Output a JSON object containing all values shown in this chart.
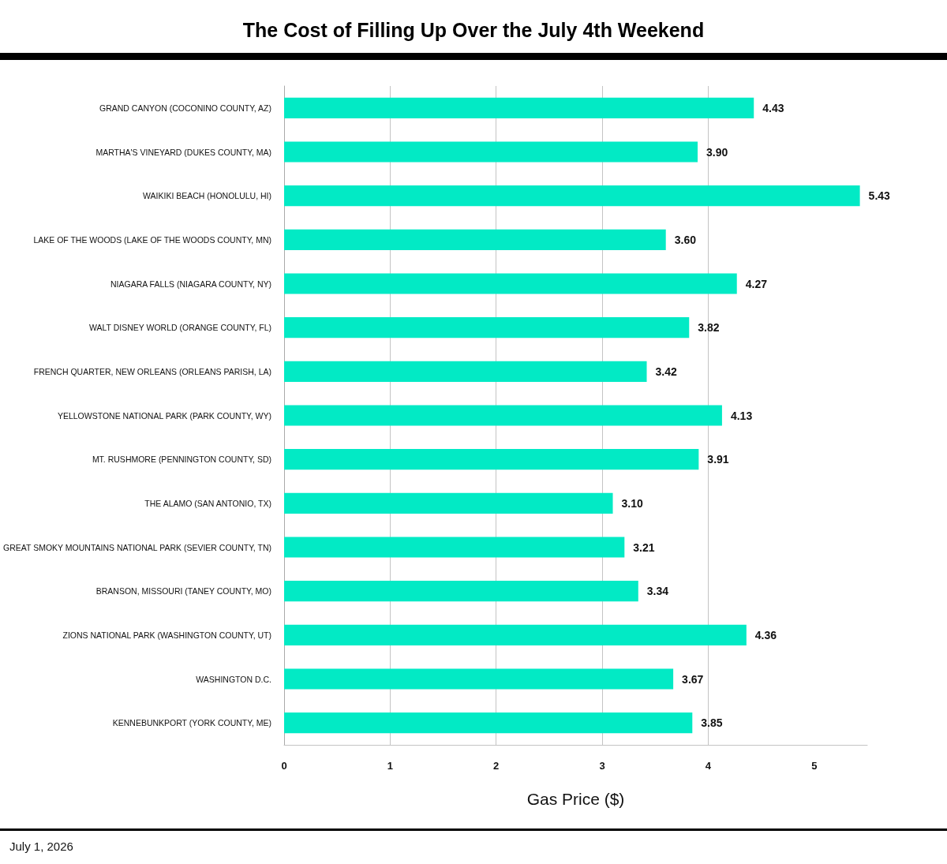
{
  "chart_data": {
    "type": "bar",
    "orientation": "horizontal",
    "title": "The Cost of Filling Up Over the July 4th Weekend",
    "categories": [
      "GRAND CANYON (COCONINO COUNTY, AZ)",
      "MARTHA'S VINEYARD (DUKES COUNTY, MA)",
      "WAIKIKI BEACH (HONOLULU, HI)",
      "LAKE OF THE WOODS (LAKE OF THE WOODS COUNTY, MN)",
      "NIAGARA FALLS (NIAGARA COUNTY, NY)",
      "WALT DISNEY WORLD (ORANGE COUNTY, FL)",
      "FRENCH QUARTER, NEW ORLEANS (ORLEANS PARISH, LA)",
      "YELLOWSTONE NATIONAL PARK (PARK COUNTY, WY)",
      "MT. RUSHMORE (PENNINGTON COUNTY, SD)",
      "THE ALAMO (SAN ANTONIO, TX)",
      "GREAT SMOKY MOUNTAINS NATIONAL PARK (SEVIER COUNTY, TN)",
      "BRANSON, MISSOURI (TANEY COUNTY, MO)",
      "ZIONS NATIONAL PARK (WASHINGTON COUNTY, UT)",
      "WASHINGTON D.C.",
      "KENNEBUNKPORT (YORK COUNTY, ME)"
    ],
    "values": [
      4.43,
      3.9,
      5.43,
      3.6,
      4.27,
      3.82,
      3.42,
      4.13,
      3.91,
      3.1,
      3.21,
      3.34,
      4.36,
      3.67,
      3.85
    ],
    "value_labels": [
      "4.43",
      "3.90",
      "5.43",
      "3.60",
      "4.27",
      "3.82",
      "3.42",
      "4.13",
      "3.91",
      "3.10",
      "3.21",
      "3.34",
      "4.36",
      "3.67",
      "3.85"
    ],
    "color": "#02eac5",
    "xlabel": "Gas Price ($)",
    "xlim": [
      0,
      5.5
    ],
    "xticks": [
      0,
      1,
      2,
      3,
      4,
      5
    ],
    "grid": "x",
    "annotations": [
      "July 1, 2026"
    ]
  }
}
